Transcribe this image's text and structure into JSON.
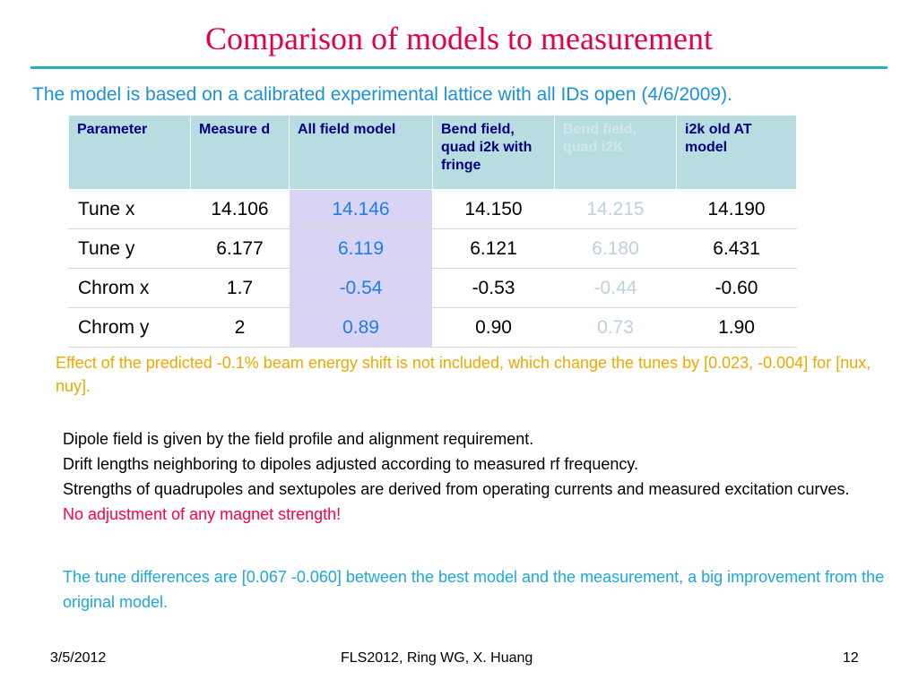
{
  "slide": {
    "title": "Comparison of models to measurement",
    "subtitle": "The model is based on a calibrated experimental lattice with all IDs open (4/6/2009)."
  },
  "table": {
    "headers": [
      "Parameter",
      "Measure d",
      "All field model",
      "Bend field, quad i2k with fringe",
      "Bend field, quad i2K",
      "i2k old AT model"
    ],
    "rows": [
      {
        "label": "Tune x",
        "values": [
          "14.106",
          "14.146",
          "14.150",
          "14.215",
          "14.190"
        ]
      },
      {
        "label": "Tune y",
        "values": [
          "6.177",
          "6.119",
          "6.121",
          "6.180",
          "6.431"
        ]
      },
      {
        "label": "Chrom x",
        "values": [
          "1.7",
          "-0.54",
          "-0.53",
          "-0.44",
          "-0.60"
        ]
      },
      {
        "label": "Chrom y",
        "values": [
          "2",
          "0.89",
          "0.90",
          "0.73",
          "1.90"
        ]
      }
    ]
  },
  "note": "Effect of the predicted -0.1% beam energy shift is not included, which change the tunes by [0.023, -0.004] for [nux, nuy].",
  "body": {
    "lines": [
      "Dipole field is given by the field profile and alignment requirement.",
      "Drift lengths neighboring to dipoles adjusted according to measured rf frequency.",
      "Strengths of quadrupoles and sextupoles are derived from operating currents and measured excitation curves."
    ],
    "highlight": "No adjustment of any magnet strength!"
  },
  "conclusion": "The tune differences are [0.067   -0.060] between the best model and the measurement, a big improvement from the original model.",
  "footer": {
    "date": "3/5/2012",
    "center": "FLS2012, Ring WG, X. Huang",
    "page": "12"
  }
}
